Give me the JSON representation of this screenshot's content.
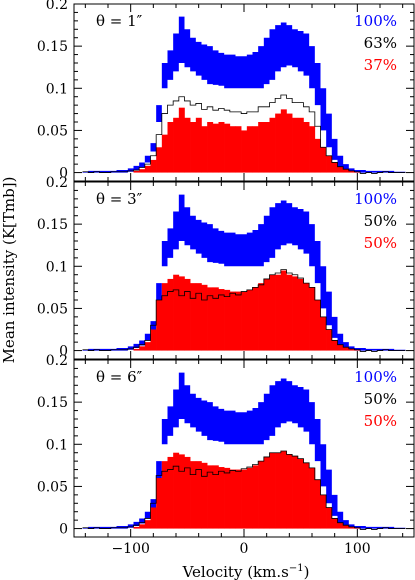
{
  "colors": {
    "blue": "#0000ff",
    "red": "#ff0000",
    "black": "#000000"
  },
  "chart_data": {
    "type": "area",
    "ylabel": "Mean intensity (K[Tmb])",
    "xlabel": "Velocity (km.s",
    "xlabel_sup": "−1",
    "xlabel_close": ")",
    "xlim": [
      -150,
      150
    ],
    "x_ticks": [
      -100,
      0,
      100
    ],
    "x_tick_labels": [
      "−100",
      "0",
      "100"
    ],
    "ylim": [
      -0.01,
      0.2
    ],
    "y_ticks": [
      0,
      0.05,
      0.1,
      0.15,
      0.2
    ],
    "y_tick_labels": [
      "0",
      "0.05",
      "0.1",
      "0.15",
      "0.2"
    ],
    "channel_width_kms": 5,
    "envelope_centers": [
      -140,
      -135,
      -130,
      -125,
      -120,
      -115,
      -110,
      -105,
      -100,
      -95,
      -90,
      -85,
      -80,
      -75,
      -70,
      -65,
      -60,
      -55,
      -50,
      -45,
      -40,
      -35,
      -30,
      -25,
      -20,
      -15,
      -10,
      -5,
      0,
      5,
      10,
      15,
      20,
      25,
      30,
      35,
      40,
      45,
      50,
      55,
      60,
      65,
      70,
      75,
      80,
      85,
      90,
      95,
      100,
      105,
      110,
      115,
      120,
      125,
      130,
      135,
      140
    ],
    "total_lower": [
      0,
      0,
      0,
      0,
      0,
      0,
      0,
      0,
      0.001,
      0.003,
      0.006,
      0.012,
      0.025,
      0.06,
      0.1,
      0.11,
      0.12,
      0.13,
      0.125,
      0.12,
      0.115,
      0.11,
      0.105,
      0.104,
      0.103,
      0.1,
      0.1,
      0.1,
      0.1,
      0.1,
      0.1,
      0.1,
      0.105,
      0.11,
      0.12,
      0.125,
      0.127,
      0.125,
      0.12,
      0.115,
      0.1,
      0.08,
      0.05,
      0.03,
      0.015,
      0.007,
      0.003,
      0.001,
      0,
      0,
      0,
      0,
      0,
      0,
      0,
      0,
      0
    ],
    "total_upper": [
      0.001,
      0.002,
      0.002,
      0.002,
      0.002,
      0.002,
      0.003,
      0.003,
      0.005,
      0.008,
      0.012,
      0.02,
      0.035,
      0.08,
      0.13,
      0.145,
      0.165,
      0.185,
      0.17,
      0.16,
      0.155,
      0.152,
      0.15,
      0.145,
      0.142,
      0.14,
      0.14,
      0.138,
      0.138,
      0.14,
      0.143,
      0.15,
      0.16,
      0.17,
      0.175,
      0.178,
      0.175,
      0.17,
      0.168,
      0.165,
      0.15,
      0.13,
      0.1,
      0.07,
      0.04,
      0.02,
      0.01,
      0.005,
      0.003,
      0.003,
      0.002,
      0.002,
      0.002,
      0.002,
      0.002,
      0.001,
      0.001
    ],
    "panels": [
      {
        "theta_label": "θ = 1″",
        "legend": [
          {
            "label": "100%",
            "color": "#0000ff"
          },
          {
            "label": "63%",
            "color": "#000000"
          },
          {
            "label": "37%",
            "color": "#ff0000"
          }
        ],
        "red_histogram": [
          0,
          0,
          0,
          0,
          0,
          0,
          0,
          0,
          0,
          0.002,
          0.004,
          0.008,
          0.015,
          0.03,
          0.045,
          0.06,
          0.065,
          0.077,
          0.065,
          0.06,
          0.065,
          0.055,
          0.06,
          0.058,
          0.06,
          0.058,
          0.055,
          0.055,
          0.05,
          0.055,
          0.055,
          0.06,
          0.06,
          0.065,
          0.07,
          0.075,
          0.07,
          0.065,
          0.065,
          0.06,
          0.055,
          0.04,
          0.03,
          0.02,
          0.012,
          0.007,
          0.004,
          0.002,
          0.001,
          0,
          0,
          0,
          0,
          0,
          0,
          0,
          0
        ],
        "black_histogram": [
          0.001,
          0,
          0.001,
          0,
          0,
          0.001,
          0.001,
          0.001,
          0.002,
          0.003,
          0.006,
          0.01,
          0.02,
          0.045,
          0.07,
          0.08,
          0.085,
          0.09,
          0.085,
          0.08,
          0.082,
          0.075,
          0.078,
          0.074,
          0.076,
          0.074,
          0.072,
          0.072,
          0.07,
          0.072,
          0.072,
          0.078,
          0.078,
          0.083,
          0.088,
          0.092,
          0.088,
          0.083,
          0.083,
          0.078,
          0.072,
          0.055,
          0.03,
          0.02,
          0.012,
          0.007,
          0.004,
          0.002,
          0.001,
          -0.001,
          0,
          -0.001,
          0,
          0.001,
          0,
          0,
          0
        ]
      },
      {
        "theta_label": "θ = 3″",
        "legend": [
          {
            "label": "100%",
            "color": "#0000ff"
          },
          {
            "label": "50%",
            "color": "#000000"
          },
          {
            "label": "50%",
            "color": "#ff0000"
          }
        ],
        "red_histogram": [
          0,
          0,
          0,
          0,
          0,
          0,
          0,
          0,
          0,
          0.002,
          0.005,
          0.01,
          0.025,
          0.06,
          0.08,
          0.085,
          0.09,
          0.088,
          0.085,
          0.08,
          0.08,
          0.078,
          0.075,
          0.075,
          0.073,
          0.072,
          0.07,
          0.07,
          0.07,
          0.072,
          0.075,
          0.08,
          0.085,
          0.09,
          0.09,
          0.095,
          0.09,
          0.088,
          0.085,
          0.08,
          0.075,
          0.06,
          0.04,
          0.025,
          0.012,
          0.007,
          0.004,
          0.002,
          0.001,
          0,
          0,
          0,
          0,
          0,
          0,
          0,
          0
        ],
        "black_histogram": [
          0.001,
          0,
          0.001,
          0,
          0,
          0.001,
          0.001,
          0.001,
          0.002,
          0.004,
          0.007,
          0.012,
          0.03,
          0.06,
          0.065,
          0.07,
          0.072,
          0.065,
          0.07,
          0.062,
          0.068,
          0.06,
          0.065,
          0.062,
          0.066,
          0.064,
          0.068,
          0.066,
          0.07,
          0.072,
          0.075,
          0.078,
          0.085,
          0.09,
          0.092,
          0.096,
          0.092,
          0.09,
          0.086,
          0.08,
          0.075,
          0.06,
          0.04,
          0.025,
          0.012,
          0.007,
          0.004,
          0.002,
          0.001,
          -0.001,
          0,
          -0.001,
          0,
          0.001,
          0,
          0,
          0
        ]
      },
      {
        "theta_label": "θ = 6″",
        "legend": [
          {
            "label": "100%",
            "color": "#0000ff"
          },
          {
            "label": "50%",
            "color": "#000000"
          },
          {
            "label": "50%",
            "color": "#ff0000"
          }
        ],
        "red_histogram": [
          0,
          0,
          0,
          0,
          0,
          0,
          0,
          0,
          0,
          0.002,
          0.005,
          0.01,
          0.025,
          0.06,
          0.08,
          0.085,
          0.09,
          0.088,
          0.085,
          0.08,
          0.08,
          0.078,
          0.075,
          0.075,
          0.073,
          0.072,
          0.07,
          0.07,
          0.07,
          0.072,
          0.075,
          0.08,
          0.085,
          0.09,
          0.09,
          0.092,
          0.088,
          0.086,
          0.083,
          0.078,
          0.072,
          0.058,
          0.04,
          0.025,
          0.012,
          0.007,
          0.004,
          0.002,
          0.001,
          0,
          0,
          0,
          0,
          0,
          0,
          0,
          0
        ],
        "black_histogram": [
          0.001,
          0,
          0.001,
          0,
          0,
          0.001,
          0.001,
          0.001,
          0.002,
          0.004,
          0.007,
          0.012,
          0.03,
          0.063,
          0.068,
          0.07,
          0.074,
          0.068,
          0.072,
          0.064,
          0.07,
          0.062,
          0.067,
          0.064,
          0.068,
          0.066,
          0.069,
          0.068,
          0.071,
          0.073,
          0.076,
          0.08,
          0.085,
          0.09,
          0.09,
          0.092,
          0.088,
          0.086,
          0.083,
          0.078,
          0.072,
          0.058,
          0.04,
          0.025,
          0.012,
          0.007,
          0.004,
          0.002,
          0.001,
          -0.001,
          0,
          -0.001,
          0,
          0.001,
          0,
          0,
          0
        ]
      }
    ]
  }
}
